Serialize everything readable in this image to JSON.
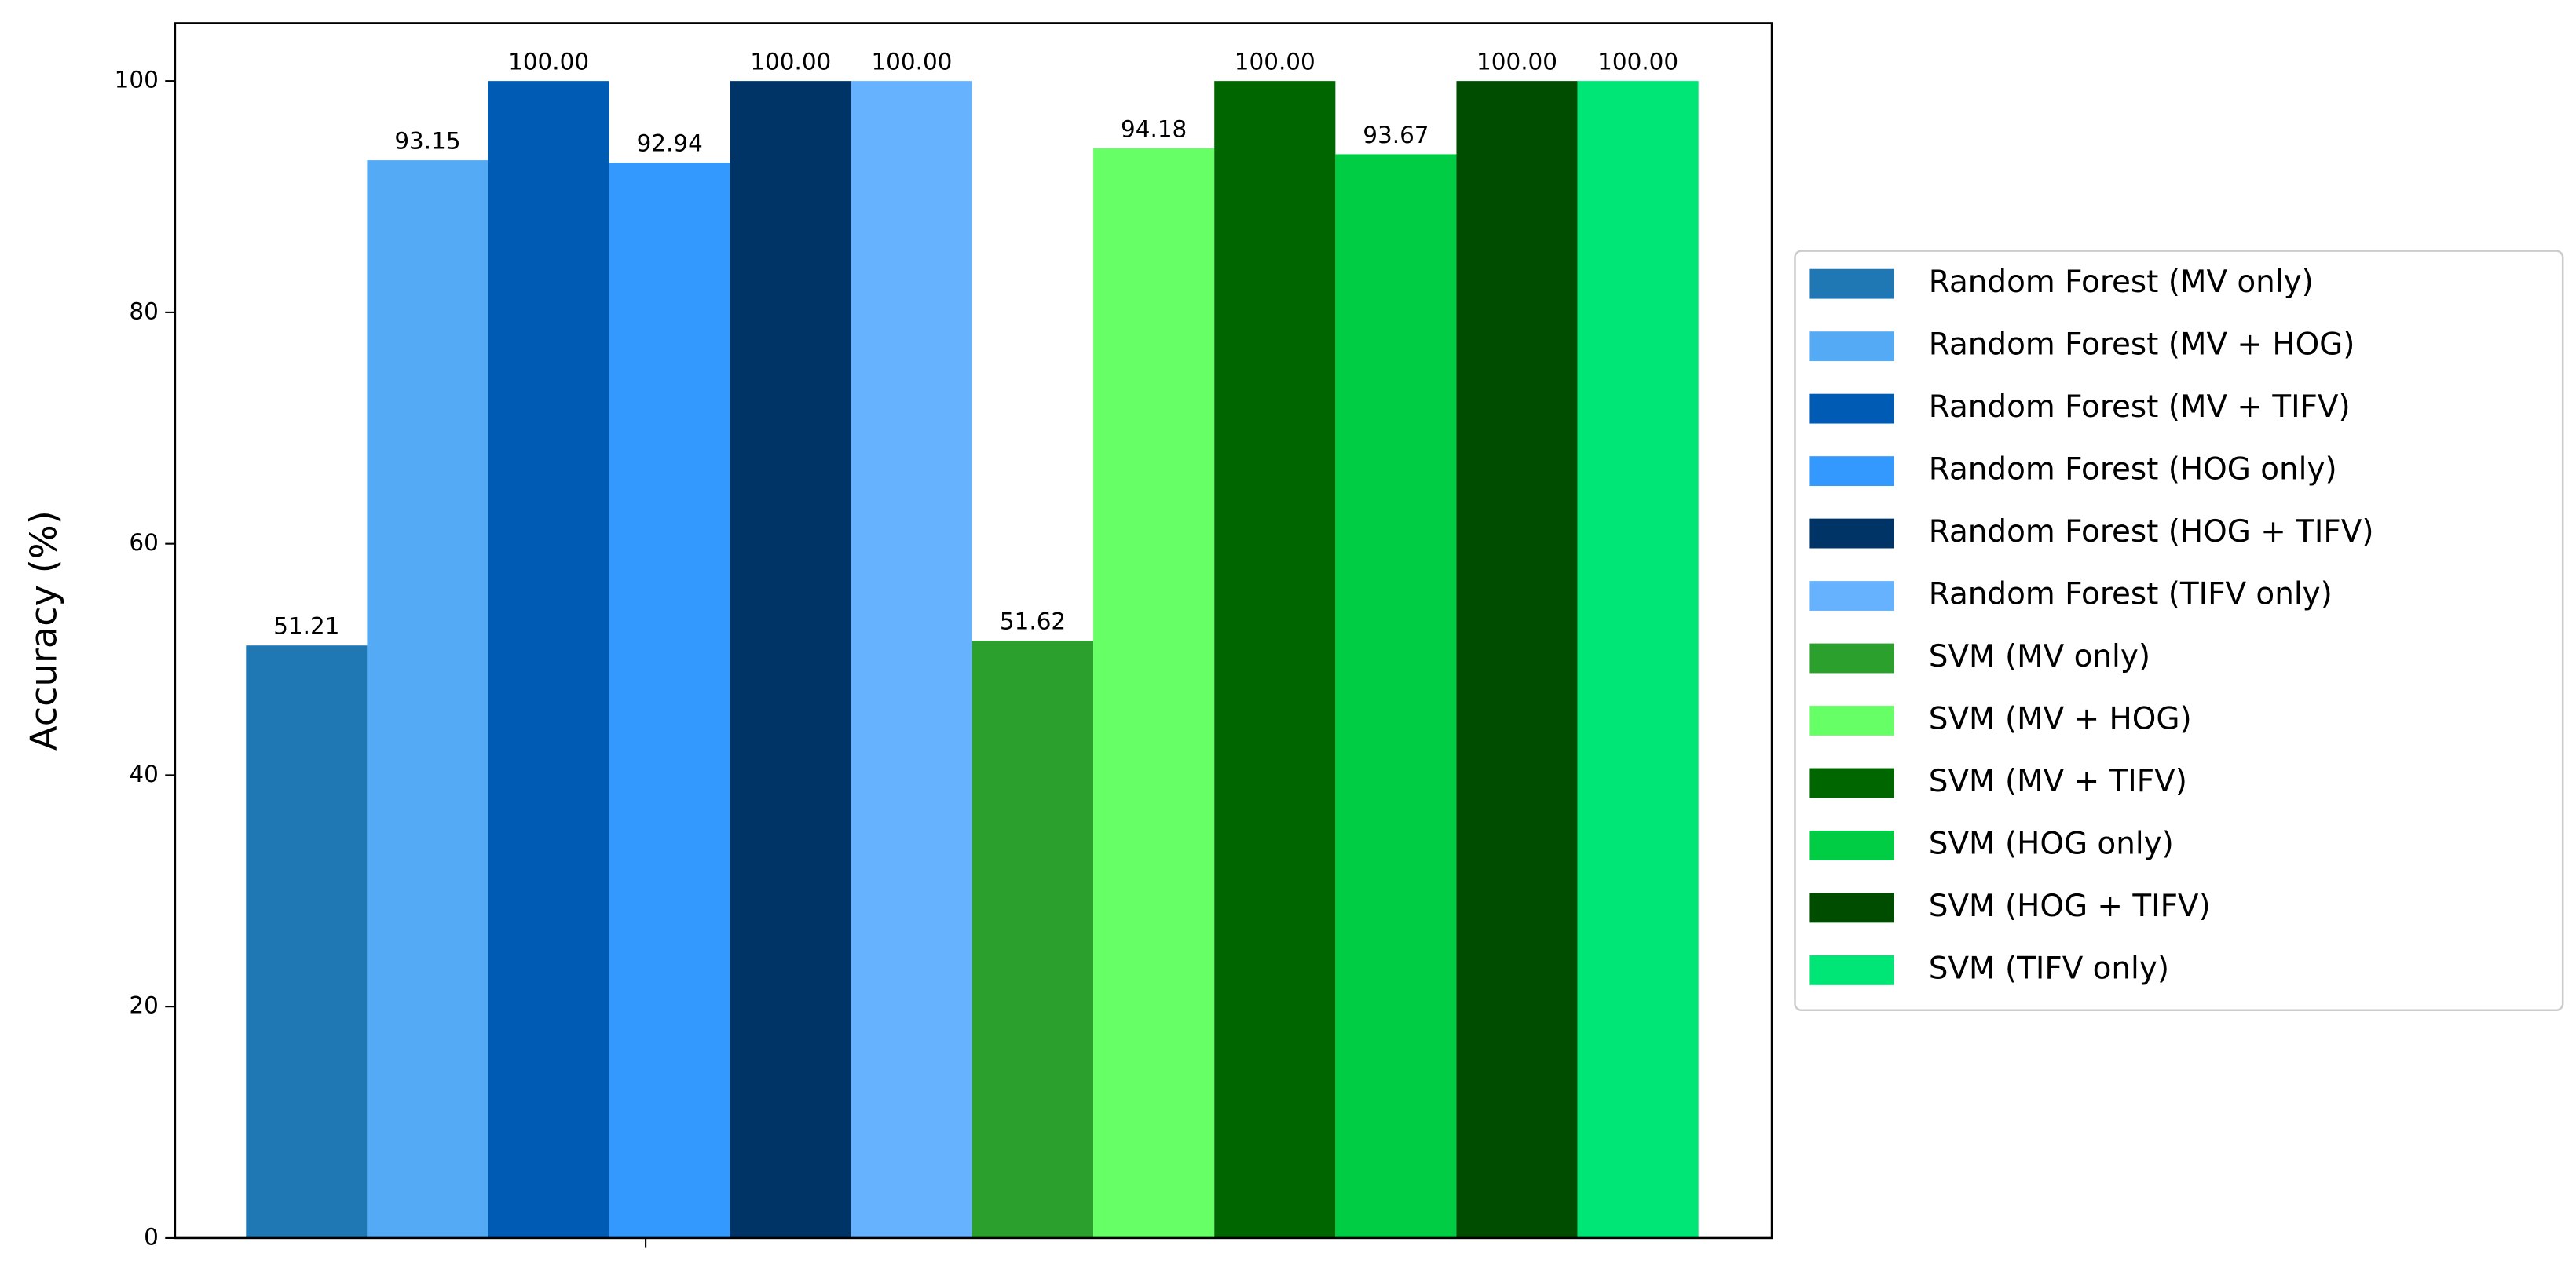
{
  "chart_data": {
    "type": "bar",
    "y_label": "Accuracy (%)",
    "categories": [
      null
    ],
    "series": [
      {
        "name": "Random Forest (MV only)",
        "color": "#1f77b4",
        "values": [
          51.21
        ],
        "value_labels": [
          "51.21"
        ]
      },
      {
        "name": "Random Forest (MV + HOG)",
        "color": "#55aaf5",
        "values": [
          93.15
        ],
        "value_labels": [
          "93.15"
        ]
      },
      {
        "name": "Random Forest (MV + TIFV)",
        "color": "#005bb5",
        "values": [
          100
        ],
        "value_labels": [
          "100.00"
        ]
      },
      {
        "name": "Random Forest (HOG only)",
        "color": "#3399ff",
        "values": [
          92.94
        ],
        "value_labels": [
          "92.94"
        ]
      },
      {
        "name": "Random Forest (HOG + TIFV)",
        "color": "#003366",
        "values": [
          100
        ],
        "value_labels": [
          "100.00"
        ]
      },
      {
        "name": "Random Forest (TIFV only)",
        "color": "#66b2ff",
        "values": [
          100
        ],
        "value_labels": [
          "100.00"
        ]
      },
      {
        "name": "SVM (MV only)",
        "color": "#2ca02c",
        "values": [
          51.62
        ],
        "value_labels": [
          "51.62"
        ]
      },
      {
        "name": "SVM (MV + HOG)",
        "color": "#66ff66",
        "values": [
          94.18
        ],
        "value_labels": [
          "94.18"
        ]
      },
      {
        "name": "SVM (MV + TIFV)",
        "color": "#006600",
        "values": [
          100
        ],
        "value_labels": [
          "100.00"
        ]
      },
      {
        "name": "SVM (HOG only)",
        "color": "#00cc44",
        "values": [
          93.67
        ],
        "value_labels": [
          "93.67"
        ]
      },
      {
        "name": "SVM (HOG + TIFV)",
        "color": "#004d00",
        "values": [
          100
        ],
        "value_labels": [
          "100.00"
        ]
      },
      {
        "name": "SVM (TIFV only)",
        "color": "#00e676",
        "values": [
          100
        ],
        "value_labels": [
          "100.00"
        ]
      }
    ],
    "ylim": [
      0,
      105
    ],
    "yticks": [
      0,
      20,
      40,
      60,
      80,
      100
    ],
    "legend": "right"
  }
}
